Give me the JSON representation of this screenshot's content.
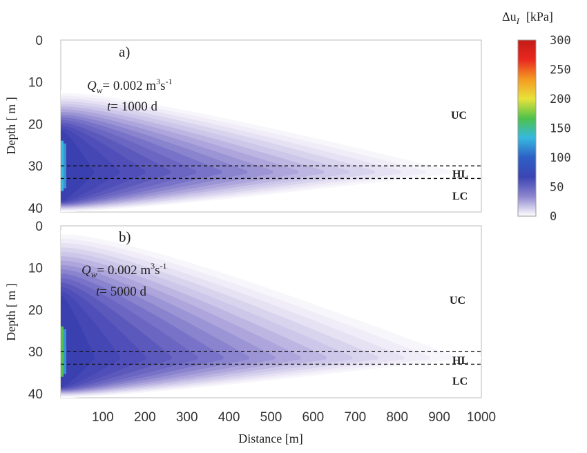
{
  "chart_data": [
    {
      "type": "heatmap",
      "panel_label": "a)",
      "flow_rate": {
        "symbol": "Q",
        "subscript": "w",
        "text": "= 0.002 m",
        "sup1": "3",
        "mid": "s",
        "sup2": "-1"
      },
      "time": {
        "symbol": "t",
        "text": "= 1000 d"
      },
      "ylabel": "Depth [ m ]",
      "yticks": [
        "0",
        "10",
        "20",
        "30",
        "40"
      ],
      "ylim": [
        0,
        41
      ],
      "xlim": [
        0,
        1000
      ],
      "layers": [
        {
          "label": "UC",
          "depth_range": [
            0,
            30
          ]
        },
        {
          "label": "HL",
          "depth_range": [
            30,
            33
          ]
        },
        {
          "label": "LC",
          "depth_range": [
            33,
            41
          ]
        }
      ],
      "dashed_lines_depth": [
        30,
        33
      ],
      "plume": {
        "max_extent_m": 990,
        "top_depth_at_well_m": 12,
        "bottom_depth_at_well_m": 41,
        "peak_value_kPa": 140
      }
    },
    {
      "type": "heatmap",
      "panel_label": "b)",
      "flow_rate": {
        "symbol": "Q",
        "subscript": "w",
        "text": "= 0.002 m",
        "sup1": "3",
        "mid": "s",
        "sup2": "-1"
      },
      "time": {
        "symbol": "t",
        "text": "= 5000 d"
      },
      "ylabel": "Depth [ m ]",
      "xlabel": "Distance [m]",
      "yticks": [
        "0",
        "10",
        "20",
        "30",
        "40"
      ],
      "xticks": [
        "100",
        "200",
        "300",
        "400",
        "500",
        "600",
        "700",
        "800",
        "900",
        "1000"
      ],
      "ylim": [
        0,
        41
      ],
      "xlim": [
        0,
        1000
      ],
      "layers": [
        {
          "label": "UC",
          "depth_range": [
            0,
            30
          ]
        },
        {
          "label": "HL",
          "depth_range": [
            30,
            33
          ]
        },
        {
          "label": "LC",
          "depth_range": [
            33,
            41
          ]
        }
      ],
      "dashed_lines_depth": [
        30,
        33
      ],
      "plume": {
        "max_extent_m": 1000,
        "top_depth_at_well_m": 1,
        "bottom_depth_at_well_m": 41,
        "peak_value_kPa": 160
      }
    }
  ],
  "colorbar": {
    "title_symbol": "Δu",
    "title_subscript": "I",
    "units": "[kPa]",
    "ticks": [
      "300",
      "250",
      "200",
      "150",
      "100",
      "50",
      "0"
    ],
    "range": [
      0,
      300
    ],
    "colors": [
      "#ffffff",
      "#8e86cf",
      "#3b45b3",
      "#2e5fc5",
      "#36b8e0",
      "#4ec24a",
      "#e8e23a",
      "#f59a22",
      "#e8281f",
      "#c41b16"
    ]
  }
}
